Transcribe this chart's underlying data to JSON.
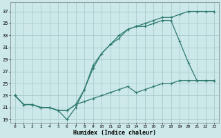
{
  "xlabel": "Humidex (Indice chaleur)",
  "bg_color": "#cce8e8",
  "grid_color": "#aacccc",
  "line_color": "#2d7a6e",
  "xlim": [
    -0.5,
    23.5
  ],
  "ylim": [
    18.5,
    38.5
  ],
  "xticks": [
    0,
    1,
    2,
    3,
    4,
    5,
    6,
    7,
    8,
    9,
    10,
    11,
    12,
    13,
    14,
    15,
    16,
    17,
    18,
    19,
    20,
    21,
    22,
    23
  ],
  "yticks": [
    19,
    21,
    23,
    25,
    27,
    29,
    31,
    33,
    35,
    37
  ],
  "line1_x": [
    0,
    1,
    2,
    3,
    4,
    5,
    6,
    7,
    8,
    9,
    10,
    11,
    12,
    13,
    14,
    15,
    16,
    17,
    18,
    19,
    20,
    21,
    22,
    23
  ],
  "line1_y": [
    23,
    21.5,
    21.5,
    21,
    21,
    20.5,
    20.5,
    21.5,
    24,
    28,
    30,
    31.5,
    33,
    34,
    34.5,
    35,
    35.5,
    36,
    36,
    36.5,
    37,
    37,
    37,
    37
  ],
  "line2_x": [
    0,
    1,
    2,
    3,
    4,
    5,
    6,
    7,
    8,
    9,
    10,
    11,
    12,
    13,
    14,
    15,
    16,
    17,
    18,
    19,
    20,
    21,
    22,
    23
  ],
  "line2_y": [
    23,
    21.5,
    21.5,
    21,
    21,
    20.5,
    19,
    21,
    24,
    27.5,
    30,
    31.5,
    32.5,
    34,
    34.5,
    34.5,
    35,
    35.5,
    35.5,
    32,
    28.5,
    25.5,
    25.5,
    25.5
  ],
  "line3_x": [
    0,
    1,
    2,
    3,
    4,
    5,
    6,
    7,
    8,
    9,
    10,
    11,
    12,
    13,
    14,
    15,
    16,
    17,
    18,
    19,
    20,
    21,
    22,
    23
  ],
  "line3_y": [
    23,
    21.5,
    21.5,
    21,
    21,
    20.5,
    20.5,
    21.5,
    22,
    22.5,
    23,
    23.5,
    24,
    24.5,
    23.5,
    24,
    24.5,
    25,
    25,
    25.5,
    25.5,
    25.5,
    25.5,
    25.5
  ]
}
